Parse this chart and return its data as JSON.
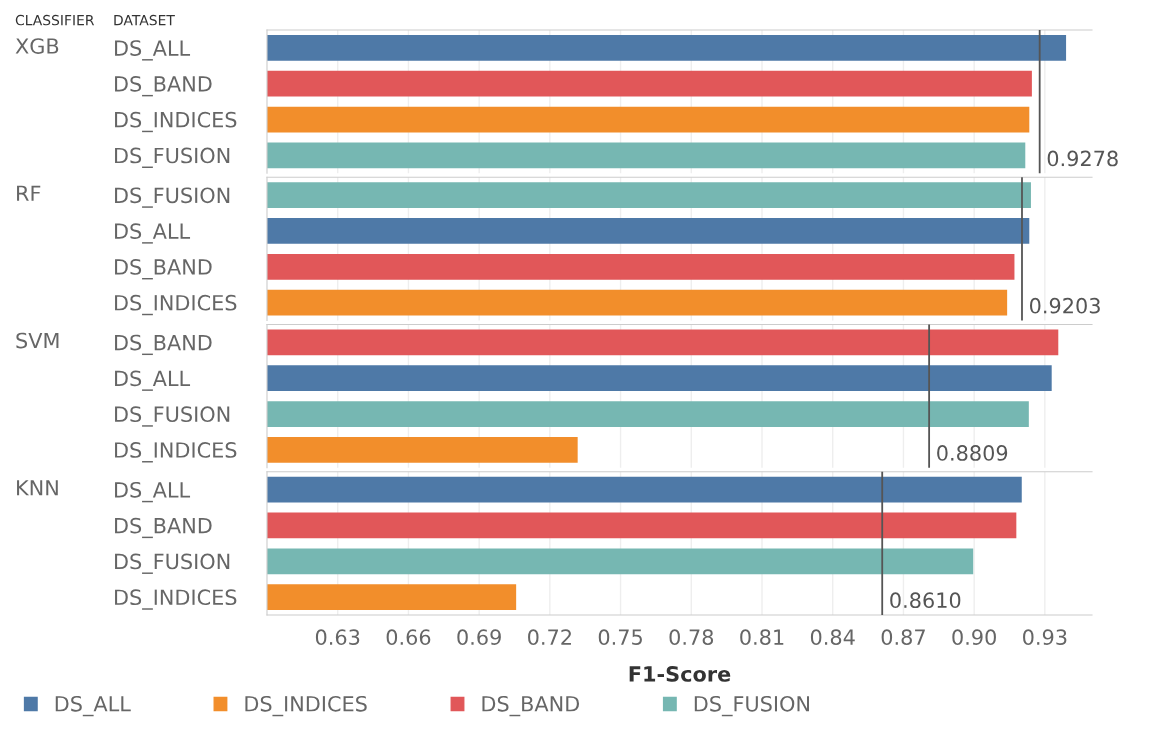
{
  "chart_data": [
    {
      "type": "bar",
      "orientation": "horizontal",
      "ylabel": "XGB",
      "annotations": [
        "CLASSIFIER",
        "DATASET"
      ],
      "categories": [
        "DS_ALL",
        "DS_BAND",
        "DS_INDICES",
        "DS_FUSION"
      ],
      "values": [
        0.939,
        0.9245,
        0.9234,
        0.9217
      ],
      "colors": [
        "#4e79a7",
        "#e15759",
        "#f28e2b",
        "#76b7b2"
      ],
      "xlim": [
        0.6,
        0.95
      ],
      "tick_labels": "y",
      "grid": "x",
      "ref_lines": [
        {
          "axis": "x",
          "value": 0.9278,
          "label": "0.9278",
          "color": "#555555"
        }
      ]
    },
    {
      "type": "bar",
      "orientation": "horizontal",
      "ylabel": "RF",
      "categories": [
        "DS_FUSION",
        "DS_ALL",
        "DS_BAND",
        "DS_INDICES"
      ],
      "values": [
        0.9241,
        0.9234,
        0.9171,
        0.914
      ],
      "colors": [
        "#76b7b2",
        "#4e79a7",
        "#e15759",
        "#f28e2b"
      ],
      "xlim": [
        0.6,
        0.95
      ],
      "tick_labels": "y",
      "grid": "x",
      "ref_lines": [
        {
          "axis": "x",
          "value": 0.9203,
          "label": "0.9203",
          "color": "#555555"
        }
      ]
    },
    {
      "type": "bar",
      "orientation": "horizontal",
      "ylabel": "SVM",
      "categories": [
        "DS_BAND",
        "DS_ALL",
        "DS_FUSION",
        "DS_INDICES"
      ],
      "values": [
        0.9357,
        0.9329,
        0.9232,
        0.7318
      ],
      "colors": [
        "#e15759",
        "#4e79a7",
        "#76b7b2",
        "#f28e2b"
      ],
      "xlim": [
        0.6,
        0.95
      ],
      "tick_labels": "y",
      "grid": "x",
      "ref_lines": [
        {
          "axis": "x",
          "value": 0.8809,
          "label": "0.8809",
          "color": "#555555"
        }
      ]
    },
    {
      "type": "bar",
      "orientation": "horizontal",
      "ylabel": "KNN",
      "xlabel": "F1-Score",
      "categories": [
        "DS_ALL",
        "DS_BAND",
        "DS_FUSION",
        "DS_INDICES"
      ],
      "series": [
        {
          "name": "DS_ALL",
          "color": "#4e79a7",
          "values": [
            0.9202,
            null,
            null,
            null
          ]
        },
        {
          "name": "DS_INDICES",
          "color": "#f28e2b",
          "values": [
            null,
            null,
            null,
            0.7057
          ]
        },
        {
          "name": "DS_BAND",
          "color": "#e15759",
          "values": [
            null,
            0.9179,
            null,
            null
          ]
        },
        {
          "name": "DS_FUSION",
          "color": "#76b7b2",
          "values": [
            null,
            null,
            0.8996,
            null
          ]
        }
      ],
      "xlim": [
        0.6,
        0.95
      ],
      "xticks": [
        0.63,
        0.66,
        0.69,
        0.72,
        0.75,
        0.78,
        0.81,
        0.84,
        0.87,
        {
          "value": 0.9,
          "label": "0.90"
        },
        0.93
      ],
      "grid": "x",
      "legend": "bottom",
      "ref_lines": [
        {
          "axis": "x",
          "value": 0.861,
          "label": "0.8610",
          "color": "#555555"
        }
      ]
    }
  ]
}
